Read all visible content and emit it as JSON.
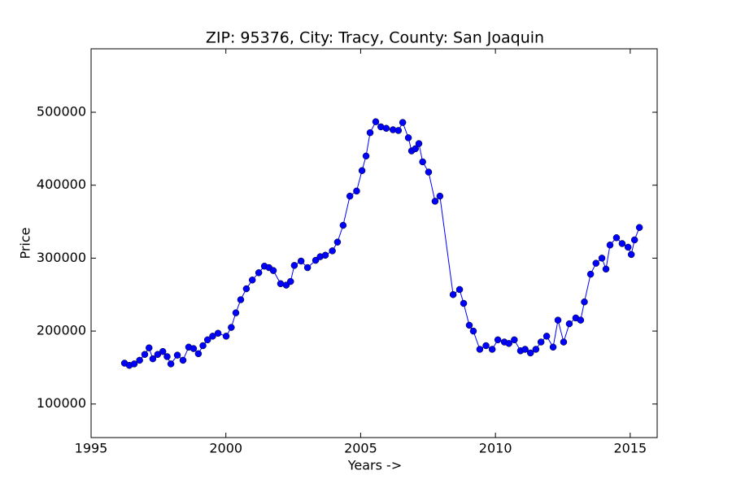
{
  "chart_data": {
    "type": "line",
    "title": "ZIP: 95376, City: Tracy, County: San Joaquin",
    "x_label": "Years ->",
    "y_label": "Price",
    "xlim": [
      1995,
      2016
    ],
    "xticks": [
      1995,
      2000,
      2005,
      2010,
      2015
    ],
    "ylim": [
      54000,
      587000
    ],
    "yticks": [
      100000,
      200000,
      300000,
      400000,
      500000
    ],
    "series": [
      {
        "name": "Price",
        "color": "#0000ff",
        "x": [
          1996.24,
          1996.42,
          1996.6,
          1996.8,
          1996.99,
          1997.15,
          1997.29,
          1997.47,
          1997.66,
          1997.82,
          1997.96,
          1998.2,
          1998.41,
          1998.62,
          1998.8,
          1998.98,
          1999.15,
          1999.32,
          1999.51,
          1999.71,
          2000.01,
          2000.2,
          2000.37,
          2000.55,
          2000.76,
          2000.98,
          2001.22,
          2001.43,
          2001.6,
          2001.76,
          2002.03,
          2002.24,
          2002.4,
          2002.54,
          2002.79,
          2003.03,
          2003.33,
          2003.5,
          2003.69,
          2003.95,
          2004.14,
          2004.35,
          2004.6,
          2004.85,
          2005.05,
          2005.2,
          2005.35,
          2005.56,
          2005.75,
          2005.95,
          2006.2,
          2006.4,
          2006.56,
          2006.77,
          2006.89,
          2007.03,
          2007.16,
          2007.3,
          2007.52,
          2007.76,
          2007.94,
          2008.43,
          2008.67,
          2008.82,
          2009.03,
          2009.18,
          2009.42,
          2009.65,
          2009.88,
          2010.09,
          2010.33,
          2010.5,
          2010.7,
          2010.93,
          2011.1,
          2011.3,
          2011.5,
          2011.69,
          2011.9,
          2012.14,
          2012.32,
          2012.53,
          2012.74,
          2012.98,
          2013.16,
          2013.3,
          2013.53,
          2013.73,
          2013.95,
          2014.1,
          2014.25,
          2014.49,
          2014.7,
          2014.92,
          2015.04,
          2015.16,
          2015.34
        ],
        "values": [
          156000,
          153000,
          155000,
          160000,
          168000,
          177000,
          162000,
          168000,
          172000,
          165000,
          155000,
          167000,
          160000,
          178000,
          176000,
          169000,
          180000,
          188000,
          193000,
          197000,
          193000,
          205000,
          225000,
          243000,
          258000,
          270000,
          280000,
          289000,
          287000,
          283000,
          265000,
          263000,
          268000,
          290000,
          296000,
          287000,
          297000,
          302000,
          304000,
          310000,
          322000,
          345000,
          385000,
          392000,
          420000,
          440000,
          472000,
          487000,
          480000,
          478000,
          476000,
          475000,
          486000,
          465000,
          447000,
          450000,
          457000,
          432000,
          418000,
          378000,
          385000,
          250000,
          257000,
          238000,
          208000,
          200000,
          175000,
          180000,
          175000,
          188000,
          185000,
          183000,
          188000,
          173000,
          175000,
          170000,
          175000,
          185000,
          193000,
          178000,
          215000,
          185000,
          210000,
          218000,
          215000,
          240000,
          278000,
          293000,
          300000,
          285000,
          318000,
          328000,
          320000,
          315000,
          305000,
          325000,
          342000
        ]
      }
    ]
  }
}
